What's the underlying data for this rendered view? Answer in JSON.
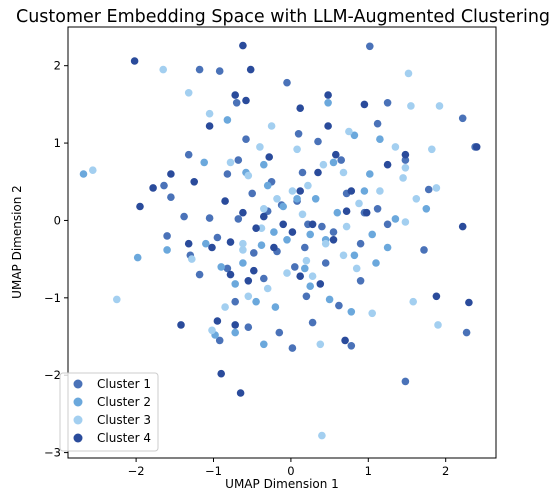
{
  "chart_data": {
    "type": "scatter",
    "title": "Customer Embedding Space with LLM-Augmented Clustering",
    "xlabel": "UMAP Dimension 1",
    "ylabel": "UMAP Dimension 2",
    "xlim": [
      -2.88,
      2.65
    ],
    "ylim": [
      -3.07,
      2.5
    ],
    "xticks": [
      -2,
      -1,
      0,
      1,
      2
    ],
    "yticks": [
      -3,
      -2,
      -1,
      0,
      1,
      2
    ],
    "grid": false,
    "legend_position": "lower-left",
    "series": [
      {
        "name": "Cluster 1",
        "color": "#4a72b8",
        "points": [
          [
            -0.92,
            1.93
          ],
          [
            -1.18,
            1.95
          ],
          [
            -0.7,
            1.52
          ],
          [
            -0.58,
            1.05
          ],
          [
            -0.68,
            0.78
          ],
          [
            -1.32,
            0.85
          ],
          [
            -1.64,
            0.45
          ],
          [
            -1.55,
            0.3
          ],
          [
            -1.38,
            0.05
          ],
          [
            -1.05,
            0.03
          ],
          [
            -0.82,
            0.6
          ],
          [
            -0.5,
            0.35
          ],
          [
            -0.3,
            0.12
          ],
          [
            -0.12,
            0.2
          ],
          [
            0.08,
            0.25
          ],
          [
            0.22,
            -0.05
          ],
          [
            0.4,
            -0.08
          ],
          [
            0.72,
            0.35
          ],
          [
            0.95,
            0.1
          ],
          [
            1.12,
            0.15
          ],
          [
            1.25,
            -0.05
          ],
          [
            0.9,
            -0.3
          ],
          [
            0.55,
            -0.15
          ],
          [
            0.18,
            -0.35
          ],
          [
            -0.18,
            -0.4
          ],
          [
            -0.48,
            -0.42
          ],
          [
            -0.95,
            -0.22
          ],
          [
            -1.3,
            -0.45
          ],
          [
            -1.6,
            -0.2
          ],
          [
            -1.18,
            -0.7
          ],
          [
            -0.82,
            -0.62
          ],
          [
            -0.35,
            -0.75
          ],
          [
            0.05,
            -0.6
          ],
          [
            0.45,
            -0.55
          ],
          [
            0.62,
            -1.1
          ],
          [
            0.28,
            -1.32
          ],
          [
            -0.15,
            -1.45
          ],
          [
            -0.55,
            -1.38
          ],
          [
            -0.92,
            -1.55
          ],
          [
            0.02,
            -1.65
          ],
          [
            0.78,
            -1.62
          ],
          [
            1.12,
            1.25
          ],
          [
            0.65,
            0.78
          ],
          [
            0.35,
            1.02
          ],
          [
            0.1,
            1.12
          ],
          [
            -0.25,
            0.5
          ],
          [
            -0.05,
            1.78
          ],
          [
            0.15,
            0.62
          ],
          [
            1.48,
            0.78
          ],
          [
            1.78,
            0.4
          ],
          [
            2.22,
            1.32
          ],
          [
            2.38,
            0.95
          ],
          [
            1.02,
            2.25
          ],
          [
            0.9,
            -0.78
          ],
          [
            1.25,
            1.52
          ],
          [
            -0.68,
            0.02
          ],
          [
            0.2,
            -0.98
          ],
          [
            -0.72,
            -1.05
          ],
          [
            1.72,
            -0.38
          ],
          [
            2.27,
            -1.45
          ],
          [
            1.48,
            -2.08
          ]
        ]
      },
      {
        "name": "Cluster 2",
        "color": "#6ba8dc",
        "points": [
          [
            -2.68,
            0.6
          ],
          [
            -1.98,
            -0.48
          ],
          [
            -1.6,
            -0.38
          ],
          [
            -1.12,
            0.75
          ],
          [
            -0.82,
            1.3
          ],
          [
            -0.58,
            0.62
          ],
          [
            -0.3,
            0.45
          ],
          [
            -0.1,
            0.18
          ],
          [
            0.08,
            0.28
          ],
          [
            0.25,
            -0.18
          ],
          [
            0.45,
            -0.25
          ],
          [
            0.6,
            0.1
          ],
          [
            0.82,
            -0.45
          ],
          [
            1.05,
            -0.18
          ],
          [
            1.25,
            -0.35
          ],
          [
            1.02,
            0.6
          ],
          [
            0.82,
            1.1
          ],
          [
            0.55,
            0.75
          ],
          [
            0.32,
            0.28
          ],
          [
            -0.05,
            -0.25
          ],
          [
            -0.38,
            -0.32
          ],
          [
            -0.62,
            -0.55
          ],
          [
            -0.9,
            -0.6
          ],
          [
            -1.1,
            -0.3
          ],
          [
            -0.72,
            -0.82
          ],
          [
            -0.45,
            -1.05
          ],
          [
            -0.2,
            -1.12
          ],
          [
            0.25,
            -0.85
          ],
          [
            0.5,
            -1.02
          ],
          [
            0.78,
            -1.18
          ],
          [
            -0.98,
            -1.48
          ],
          [
            -0.72,
            -1.45
          ],
          [
            -0.35,
            -1.6
          ],
          [
            1.1,
            -0.55
          ],
          [
            1.15,
            1.05
          ],
          [
            0.48,
            1.52
          ],
          [
            -0.22,
            -0.15
          ],
          [
            -0.35,
            0.72
          ],
          [
            0.95,
            0.38
          ],
          [
            1.35,
            0.02
          ],
          [
            1.75,
            0.15
          ],
          [
            0.18,
            -0.62
          ]
        ]
      },
      {
        "name": "Cluster 3",
        "color": "#a3cff0",
        "points": [
          [
            -2.56,
            0.65
          ],
          [
            -1.65,
            1.95
          ],
          [
            -1.32,
            1.65
          ],
          [
            -1.05,
            1.38
          ],
          [
            -0.78,
            0.75
          ],
          [
            -0.55,
            0.58
          ],
          [
            -0.35,
            0.15
          ],
          [
            -0.18,
            0.28
          ],
          [
            0.02,
            0.38
          ],
          [
            0.22,
            0.45
          ],
          [
            0.42,
            0.72
          ],
          [
            0.68,
            0.62
          ],
          [
            0.88,
            0.22
          ],
          [
            1.15,
            0.38
          ],
          [
            1.45,
            0.55
          ],
          [
            1.62,
            0.28
          ],
          [
            1.82,
            0.92
          ],
          [
            1.92,
            1.48
          ],
          [
            1.52,
            1.9
          ],
          [
            1.55,
            1.48
          ],
          [
            1.88,
            0.42
          ],
          [
            0.72,
            -0.08
          ],
          [
            0.45,
            -0.3
          ],
          [
            0.2,
            -0.52
          ],
          [
            -0.05,
            -0.68
          ],
          [
            -0.3,
            -0.88
          ],
          [
            -0.55,
            -0.98
          ],
          [
            -0.85,
            -1.12
          ],
          [
            -1.02,
            -1.42
          ],
          [
            -1.28,
            -0.5
          ],
          [
            -0.62,
            -0.38
          ],
          [
            -0.4,
            0.95
          ],
          [
            -0.25,
            1.22
          ],
          [
            0.38,
            -1.6
          ],
          [
            0.85,
            -0.62
          ],
          [
            1.05,
            -1.2
          ],
          [
            1.48,
            -0.02
          ],
          [
            1.35,
            0.95
          ],
          [
            1.58,
            -1.05
          ],
          [
            1.9,
            -1.35
          ],
          [
            -2.25,
            -1.02
          ],
          [
            0.4,
            -2.78
          ],
          [
            -0.38,
            -0.1
          ],
          [
            0.15,
            0.08
          ],
          [
            0.75,
            1.15
          ],
          [
            0.08,
            0.92
          ],
          [
            0.28,
            -0.72
          ],
          [
            -0.62,
            -0.3
          ],
          [
            0.68,
            -0.45
          ],
          [
            1.48,
            0.68
          ]
        ]
      },
      {
        "name": "Cluster 4",
        "color": "#2a4b9b",
        "points": [
          [
            -2.02,
            2.06
          ],
          [
            -0.52,
            1.95
          ],
          [
            -0.72,
            1.62
          ],
          [
            -1.05,
            1.22
          ],
          [
            -1.55,
            0.6
          ],
          [
            -1.95,
            0.18
          ],
          [
            -1.25,
            0.5
          ],
          [
            -0.85,
            0.25
          ],
          [
            -0.62,
            0.1
          ],
          [
            -0.35,
            0.05
          ],
          [
            -0.1,
            -0.05
          ],
          [
            0.12,
            0.38
          ],
          [
            0.35,
            0.62
          ],
          [
            0.58,
            0.85
          ],
          [
            0.78,
            0.38
          ],
          [
            0.98,
            0.1
          ],
          [
            1.25,
            0.72
          ],
          [
            0.55,
            -0.25
          ],
          [
            0.28,
            -0.05
          ],
          [
            0.02,
            -0.15
          ],
          [
            -0.22,
            -0.35
          ],
          [
            -0.48,
            -0.65
          ],
          [
            -0.78,
            -0.28
          ],
          [
            -1.02,
            -0.35
          ],
          [
            -1.32,
            -0.3
          ],
          [
            -1.42,
            -1.35
          ],
          [
            -0.95,
            -1.3
          ],
          [
            -0.72,
            -1.35
          ],
          [
            -0.55,
            -0.78
          ],
          [
            0.7,
            -1.55
          ],
          [
            0.95,
            1.5
          ],
          [
            0.48,
            1.22
          ],
          [
            0.12,
            1.45
          ],
          [
            -0.28,
            0.82
          ],
          [
            -0.62,
            2.26
          ],
          [
            -0.58,
            1.55
          ],
          [
            -0.45,
            -0.1
          ],
          [
            -1.78,
            0.42
          ],
          [
            2.4,
            0.95
          ],
          [
            2.22,
            -0.08
          ],
          [
            2.3,
            -1.06
          ],
          [
            1.88,
            -0.98
          ],
          [
            -0.65,
            -2.23
          ],
          [
            -0.9,
            -1.98
          ],
          [
            0.38,
            -0.82
          ],
          [
            0.72,
            0.12
          ],
          [
            -0.78,
            -0.7
          ],
          [
            0.12,
            -0.72
          ],
          [
            0.48,
            1.62
          ],
          [
            1.48,
            0.85
          ]
        ]
      }
    ]
  }
}
